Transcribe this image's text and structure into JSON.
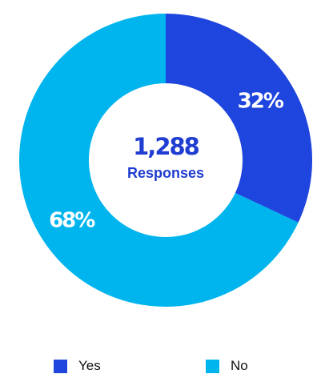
{
  "chart_data": {
    "type": "pie",
    "variant": "donut",
    "center": {
      "total": "1,288",
      "label": "Responses"
    },
    "slices": [
      {
        "name": "Yes",
        "value": 32,
        "label": "32%",
        "color": "#1F45DF"
      },
      {
        "name": "No",
        "value": 68,
        "label": "68%",
        "color": "#00B5EE"
      }
    ],
    "legend": {
      "placement": "bottom",
      "items": [
        {
          "label": "Yes",
          "color": "#1F45DF"
        },
        {
          "label": "No",
          "color": "#00B5EE"
        }
      ]
    }
  }
}
